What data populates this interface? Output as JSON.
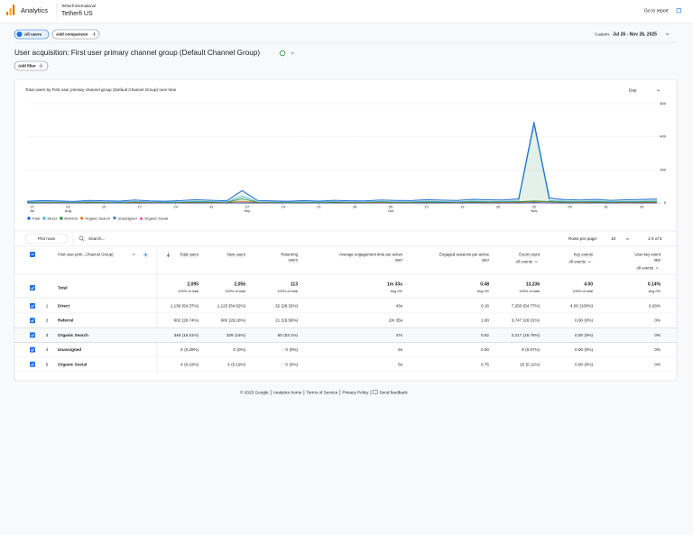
{
  "header": {
    "app": "Analytics",
    "account": "Tetherfi International",
    "property": "Tetherfi US",
    "go_to_report": "Go to report"
  },
  "toolbar": {
    "segment": "All users",
    "add_comparison": "Add comparison",
    "date_label": "Custom:",
    "date_range": "Jul 26 - Nov 26, 2025"
  },
  "report": {
    "title": "User acquisition: First user primary channel group (Default Channel Group)",
    "add_filter": "Add filter"
  },
  "chart": {
    "type": "line",
    "title": "Total users by First user primary channel group (Default Channel Group) over time",
    "granularity": "Day",
    "xlim": [
      0,
      41
    ],
    "xticks": [
      {
        "value": 0.33,
        "label": "27",
        "sub": "Jul"
      },
      {
        "value": 2.67,
        "label": "03",
        "sub": "Aug"
      },
      {
        "value": 5,
        "label": "10"
      },
      {
        "value": 7.33,
        "label": "17"
      },
      {
        "value": 9.67,
        "label": "24"
      },
      {
        "value": 12,
        "label": "31"
      },
      {
        "value": 14.33,
        "label": "07",
        "sub": "Sep"
      },
      {
        "value": 16.67,
        "label": "14"
      },
      {
        "value": 19,
        "label": "21"
      },
      {
        "value": 21.33,
        "label": "28"
      },
      {
        "value": 23.67,
        "label": "05",
        "sub": "Oct"
      },
      {
        "value": 26,
        "label": "12"
      },
      {
        "value": 28.33,
        "label": "19"
      },
      {
        "value": 30.67,
        "label": "26"
      },
      {
        "value": 33,
        "label": "02",
        "sub": "Nov"
      },
      {
        "value": 35.33,
        "label": "09"
      },
      {
        "value": 37.67,
        "label": "16"
      },
      {
        "value": 40,
        "label": "23"
      }
    ],
    "ylim": [
      0,
      600
    ],
    "yticks": [
      0,
      200,
      400,
      600
    ],
    "grid": true,
    "series": [
      {
        "name": "Total",
        "color": "#1967d2",
        "marker": "circle",
        "values": [
          10,
          14,
          12,
          9,
          15,
          13,
          11,
          18,
          12,
          10,
          14,
          20,
          16,
          13,
          75,
          15,
          12,
          10,
          14,
          11,
          16,
          13,
          12,
          18,
          15,
          14,
          20,
          17,
          15,
          22,
          19,
          18,
          25,
          490,
          30,
          20,
          18,
          22,
          16,
          19,
          21,
          24
        ]
      },
      {
        "name": "Direct",
        "color": "#4fb3d9",
        "marker": "circle",
        "values": [
          5,
          7,
          6,
          4,
          8,
          6,
          5,
          9,
          6,
          5,
          7,
          10,
          8,
          6,
          40,
          7,
          6,
          5,
          7,
          5,
          8,
          6,
          6,
          9,
          7,
          7,
          10,
          8,
          7,
          11,
          9,
          9,
          12,
          470,
          14,
          10,
          9,
          11,
          8,
          9,
          10,
          12
        ]
      },
      {
        "name": "Referral",
        "color": "#1e8e3e",
        "marker": "square",
        "values": [
          3,
          4,
          4,
          3,
          5,
          4,
          3,
          6,
          4,
          3,
          4,
          6,
          5,
          4,
          25,
          5,
          4,
          3,
          4,
          3,
          5,
          4,
          4,
          6,
          5,
          4,
          6,
          5,
          5,
          7,
          6,
          6,
          8,
          12,
          9,
          6,
          6,
          7,
          5,
          6,
          7,
          8
        ]
      },
      {
        "name": "Organic Search",
        "color": "#e8710a",
        "marker": "diamond",
        "values": [
          2,
          3,
          2,
          2,
          2,
          3,
          3,
          3,
          2,
          2,
          3,
          4,
          3,
          3,
          10,
          3,
          2,
          2,
          3,
          3,
          3,
          3,
          2,
          3,
          3,
          3,
          4,
          4,
          3,
          4,
          4,
          3,
          5,
          8,
          7,
          4,
          3,
          4,
          3,
          4,
          4,
          4
        ]
      },
      {
        "name": "Unassigned",
        "color": "#174ea6",
        "marker": "triangle-down",
        "values": [
          0,
          0,
          0,
          0,
          0,
          0,
          0,
          0,
          0,
          0,
          0,
          0,
          1,
          0,
          0,
          0,
          0,
          0,
          0,
          0,
          0,
          0,
          0,
          1,
          0,
          0,
          0,
          0,
          0,
          0,
          0,
          0,
          0,
          2,
          0,
          0,
          0,
          0,
          0,
          1,
          0,
          0
        ]
      },
      {
        "name": "Organic Social",
        "color": "#e52592",
        "marker": "triangle-up",
        "values": [
          0,
          0,
          0,
          0,
          0,
          0,
          0,
          0,
          0,
          0,
          0,
          0,
          0,
          0,
          1,
          0,
          0,
          0,
          0,
          0,
          0,
          0,
          0,
          0,
          0,
          1,
          0,
          0,
          0,
          0,
          0,
          0,
          0,
          1,
          0,
          0,
          0,
          0,
          0,
          1,
          0,
          0
        ]
      }
    ]
  },
  "table": {
    "plot_rows": "Plot rows",
    "search": "Search...",
    "rows_per_page_label": "Rows per page:",
    "rows_per_page": "10",
    "pagination": "1-5 of 5",
    "dimension_header": "First user prim...Channel Group)",
    "columns": [
      {
        "label": [
          "Total users"
        ]
      },
      {
        "label": [
          "New users"
        ]
      },
      {
        "label": [
          "Returning",
          "users"
        ]
      },
      {
        "label": [
          "Average engagement time per active",
          "user"
        ]
      },
      {
        "label": [
          "Engaged sessions per active",
          "user"
        ]
      },
      {
        "label": [
          "Event count"
        ],
        "filter": "All events"
      },
      {
        "label": [
          "Key events"
        ],
        "filter": "All events"
      },
      {
        "label": [
          "User key event",
          "rate"
        ],
        "filter": "All events"
      }
    ],
    "total": {
      "label": "Total",
      "cells": [
        [
          "2,095",
          "100% of total"
        ],
        [
          "2,056",
          "100% of total"
        ],
        [
          "113",
          "100% of total"
        ],
        [
          "1m 33s",
          "Avg 0%"
        ],
        [
          "0.48",
          "Avg 0%"
        ],
        [
          "13,236",
          "100% of total"
        ],
        [
          "4.00",
          "100% of total"
        ],
        [
          "0.14%",
          "Avg 0%"
        ]
      ]
    },
    "rows": [
      {
        "index": 1,
        "name": "Direct",
        "cells": [
          [
            "1,139",
            "(54.37%)"
          ],
          [
            "1,123",
            "(54.62%)"
          ],
          [
            "32",
            "(28.32%)"
          ],
          [
            "43s"
          ],
          [
            "0.16"
          ],
          [
            "7,250",
            "(54.77%)"
          ],
          [
            "4.00",
            "(100%)"
          ],
          [
            "0.26%"
          ]
        ]
      },
      {
        "index": 2,
        "name": "Referral",
        "cells": [
          [
            "602",
            "(28.74%)"
          ],
          [
            "600",
            "(29.18%)"
          ],
          [
            "21",
            "(18.58%)"
          ],
          [
            "2m 35s"
          ],
          [
            "1.00"
          ],
          [
            "3,747",
            "(28.31%)"
          ],
          [
            "0.00",
            "(0%)"
          ],
          [
            "0%"
          ]
        ]
      },
      {
        "index": 3,
        "name": "Organic Search",
        "cells": [
          [
            "348",
            "(16.61%)"
          ],
          [
            "329",
            "(16%)"
          ],
          [
            "60",
            "(53.1%)"
          ],
          [
            "47s"
          ],
          [
            "0.62"
          ],
          [
            "2,217",
            "(16.75%)"
          ],
          [
            "0.00",
            "(0%)"
          ],
          [
            "0%"
          ]
        ]
      },
      {
        "index": 4,
        "name": "Unassigned",
        "cells": [
          [
            "6",
            "(0.29%)"
          ],
          [
            "0",
            "(0%)"
          ],
          [
            "0",
            "(0%)"
          ],
          [
            "5s"
          ],
          [
            "0.00"
          ],
          [
            "9",
            "(0.07%)"
          ],
          [
            "0.00",
            "(0%)"
          ],
          [
            "0%"
          ]
        ]
      },
      {
        "index": 5,
        "name": "Organic Social",
        "cells": [
          [
            "4",
            "(0.19%)"
          ],
          [
            "4",
            "(0.19%)"
          ],
          [
            "0",
            "(0%)"
          ],
          [
            "5s"
          ],
          [
            "0.75"
          ],
          [
            "15",
            "(0.11%)"
          ],
          [
            "0.00",
            "(0%)"
          ],
          [
            "0%"
          ]
        ]
      }
    ]
  },
  "footer": [
    "© 2025 Google",
    "Analytics home",
    "Terms of Service",
    "Privacy Policy",
    "Send feedback"
  ]
}
